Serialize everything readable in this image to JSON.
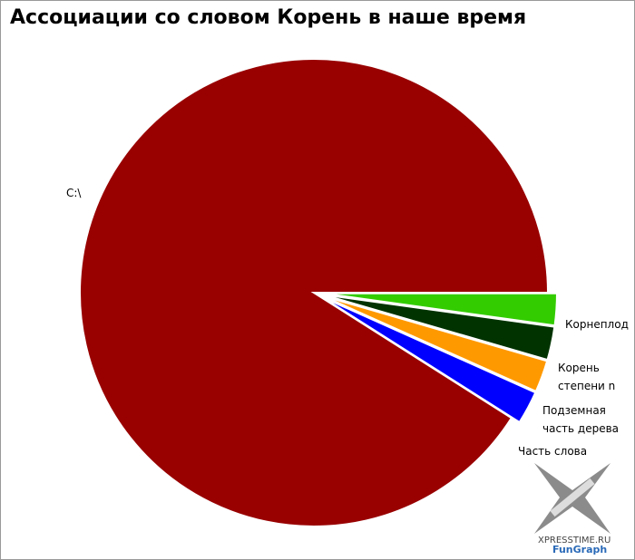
{
  "chart_data": {
    "type": "pie",
    "title": "Ассоциации со словом Корень в наше время",
    "categories": [
      "Корнеплод",
      "Корень степени n",
      "Подземная часть дерева",
      "Часть слова",
      "C:\\"
    ],
    "values": [
      2.2,
      2.3,
      2.2,
      2.3,
      91
    ],
    "colors": [
      "#33cc00",
      "#003300",
      "#ff9900",
      "#0000ff",
      "#990000"
    ],
    "watermark": [
      "XPRESSTIME.RU",
      "FunGraph"
    ]
  }
}
